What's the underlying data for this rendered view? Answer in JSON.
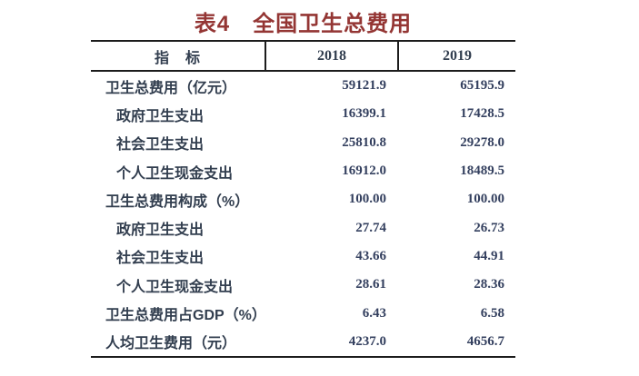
{
  "title": "表4　全国卫生总费用",
  "table": {
    "columns": [
      "指　标",
      "2018",
      "2019"
    ],
    "rows": [
      {
        "label": "卫生总费用（亿元）",
        "indent": 0,
        "v2018": "59121.9",
        "v2019": "65195.9"
      },
      {
        "label": "政府卫生支出",
        "indent": 1,
        "v2018": "16399.1",
        "v2019": "17428.5"
      },
      {
        "label": "社会卫生支出",
        "indent": 1,
        "v2018": "25810.8",
        "v2019": "29278.0"
      },
      {
        "label": "个人卫生现金支出",
        "indent": 1,
        "v2018": "16912.0",
        "v2019": "18489.5"
      },
      {
        "label": "卫生总费用构成（%）",
        "indent": 0,
        "v2018": "100.00",
        "v2019": "100.00"
      },
      {
        "label": "政府卫生支出",
        "indent": 1,
        "v2018": "27.74",
        "v2019": "26.73"
      },
      {
        "label": "社会卫生支出",
        "indent": 1,
        "v2018": "43.66",
        "v2019": "44.91"
      },
      {
        "label": "个人卫生现金支出",
        "indent": 1,
        "v2018": "28.61",
        "v2019": "28.36"
      },
      {
        "label": "卫生总费用占GDP（%）",
        "indent": 0,
        "v2018": "6.43",
        "v2019": "6.58"
      },
      {
        "label": "人均卫生费用（元）",
        "indent": 0,
        "v2018": "4237.0",
        "v2019": "4656.7"
      }
    ]
  },
  "colors": {
    "title_text": "#943634",
    "label_text": "#323e4f",
    "number_text": "#34405f",
    "border": "#1c1c1c",
    "background": "#ffffff"
  },
  "chart_data": {
    "type": "table",
    "title": "表4　全国卫生总费用",
    "columns": [
      "指标",
      "2018",
      "2019"
    ],
    "rows": [
      [
        "卫生总费用（亿元）",
        59121.9,
        65195.9
      ],
      [
        "政府卫生支出",
        16399.1,
        17428.5
      ],
      [
        "社会卫生支出",
        25810.8,
        29278.0
      ],
      [
        "个人卫生现金支出",
        16912.0,
        18489.5
      ],
      [
        "卫生总费用构成（%）",
        100.0,
        100.0
      ],
      [
        "政府卫生支出",
        27.74,
        26.73
      ],
      [
        "社会卫生支出",
        43.66,
        44.91
      ],
      [
        "个人卫生现金支出",
        28.61,
        28.36
      ],
      [
        "卫生总费用占GDP（%）",
        6.43,
        6.58
      ],
      [
        "人均卫生费用（元）",
        4237.0,
        4656.7
      ]
    ]
  }
}
